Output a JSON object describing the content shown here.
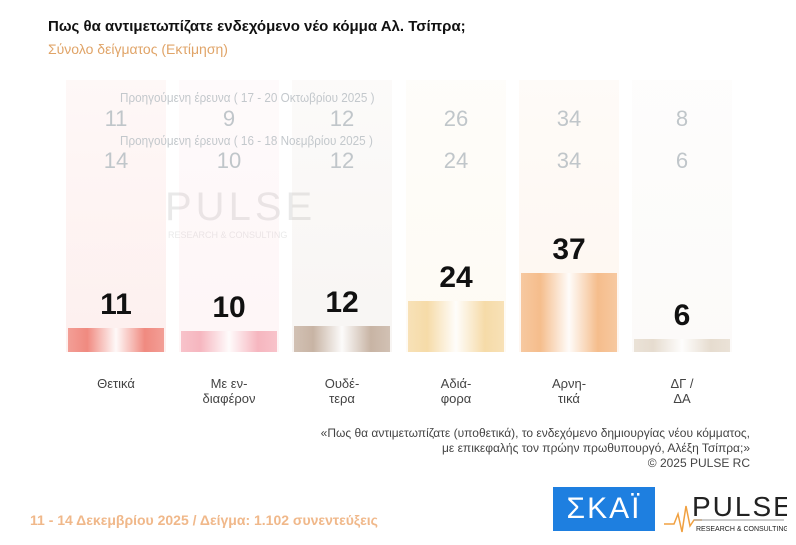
{
  "header": {
    "title": "Πως θα αντιμετωπίζατε ενδεχόμενο νέο κόμμα Αλ. Τσίπρα;",
    "subtitle": "Σύνολο δείγματος  (Εκτίμηση)"
  },
  "chart_data": {
    "type": "bar",
    "categories": [
      [
        "Θετικά"
      ],
      [
        "Με εν-",
        "διαφέρον"
      ],
      [
        "Ουδέ-",
        "τερα"
      ],
      [
        "Αδιά-",
        "φορα"
      ],
      [
        "Αρνη-",
        "τικά"
      ],
      [
        "ΔΓ /",
        "ΔΑ"
      ]
    ],
    "values": [
      11,
      10,
      12,
      24,
      37,
      6
    ],
    "previous": [
      {
        "label": "Προηγούμενη έρευνα ( 17 - 20 Οκτωβρίου 2025 )",
        "values": [
          11,
          9,
          12,
          26,
          34,
          8
        ]
      },
      {
        "label": "Προηγούμενη έρευνα ( 16 - 18 Νοεμβρίου 2025 )",
        "values": [
          14,
          10,
          12,
          24,
          34,
          6
        ]
      }
    ],
    "colors": [
      "#f08a80",
      "#f6b6bf",
      "#c8b4a4",
      "#f6dba8",
      "#f5bd8c",
      "#e6dccf"
    ],
    "ylim": [
      0,
      40
    ]
  },
  "quote": {
    "line1": "«Πως θα αντιμετωπίζατε (υποθετικά), το ενδεχόμενο δημιουργίας νέου κόμματος,",
    "line2": "με επικεφαλής τον πρώην πρωθυπουργό, Αλέξη Τσίπρα;»",
    "copyright": "©  2025  PULSE RC"
  },
  "footer": {
    "text": "11 - 14 Δεκεμβρίου 2025  /  Δείγμα:  1.102 συνεντεύξεις"
  },
  "logos": {
    "skai": "ΣΚΑΪ",
    "pulse": "PULSE",
    "pulse_sub": "RESEARCH & CONSULTING"
  }
}
